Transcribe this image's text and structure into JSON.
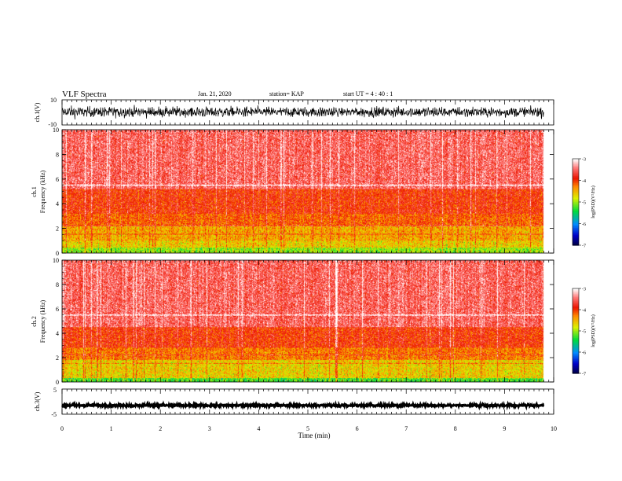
{
  "header": {
    "title": "VLF Spectra",
    "date": "Jan. 21, 2020",
    "station": "station= KAP",
    "start": "start  UT =   4 : 40 : 1"
  },
  "chart_data": [
    {
      "type": "line",
      "panel": "ch1-waveform",
      "ylabel": "ch.1(V)",
      "ylim": [
        -10,
        10
      ],
      "yticks": [
        "10",
        "-10"
      ],
      "xlim": [
        0,
        10
      ],
      "data_end": 9.8,
      "description_level": "noisy waveform, amplitude mostly between -7 and 6 V",
      "color": "#000000"
    },
    {
      "type": "heatmap",
      "panel": "ch1-spectrogram",
      "ylabel_line1": "ch.1",
      "ylabel_line2": "Frequency  (kHz)",
      "ylim": [
        0,
        10
      ],
      "yticks": [
        "0",
        "2",
        "4",
        "6",
        "8",
        "10"
      ],
      "xlim": [
        0,
        10
      ],
      "data_end": 9.8,
      "bands": [
        {
          "from": 0.0,
          "to": 0.4,
          "level": -5.0
        },
        {
          "from": 0.4,
          "to": 1.0,
          "level": -4.6
        },
        {
          "from": 1.0,
          "to": 2.2,
          "level": -4.4
        },
        {
          "from": 2.2,
          "to": 3.2,
          "level": -4.1
        },
        {
          "from": 3.2,
          "to": 5.2,
          "level": -3.9
        },
        {
          "from": 5.2,
          "to": 10.0,
          "level": -3.5
        }
      ],
      "colorbar": {
        "label": "log(PSD)(V²/Hz)",
        "min": -7,
        "max": -3,
        "ticks": [
          "-3",
          "-4",
          "-5",
          "-6",
          "-7"
        ]
      }
    },
    {
      "type": "heatmap",
      "panel": "ch2-spectrogram",
      "ylabel_line1": "ch.2",
      "ylabel_line2": "Frequency  (kHz)",
      "ylim": [
        0,
        10
      ],
      "yticks": [
        "0",
        "2",
        "4",
        "6",
        "8",
        "10"
      ],
      "xlim": [
        0,
        10
      ],
      "data_end": 9.8,
      "bands": [
        {
          "from": 0.0,
          "to": 0.3,
          "level": -5.2
        },
        {
          "from": 0.3,
          "to": 1.8,
          "level": -4.6
        },
        {
          "from": 1.8,
          "to": 2.8,
          "level": -4.2
        },
        {
          "from": 2.8,
          "to": 4.5,
          "level": -3.9
        },
        {
          "from": 4.5,
          "to": 10.0,
          "level": -3.5
        }
      ],
      "colorbar": {
        "label": "log(PSD)(V²/Hz)",
        "min": -7,
        "max": -3,
        "ticks": [
          "-3",
          "-4",
          "-5",
          "-6",
          "-7"
        ]
      }
    },
    {
      "type": "line",
      "panel": "ch3-waveform",
      "ylabel": "ch.3(V)",
      "ylim": [
        -5,
        5
      ],
      "yticks": [
        "5",
        "-5"
      ],
      "xlim": [
        0,
        10
      ],
      "data_end": 9.8,
      "description_level": "nearly constant signal near -1.5 V",
      "color": "#000000"
    }
  ],
  "x_axis": {
    "label": "Time  (min)",
    "ticks": [
      "0",
      "1",
      "2",
      "3",
      "4",
      "5",
      "6",
      "7",
      "8",
      "9",
      "10"
    ]
  }
}
